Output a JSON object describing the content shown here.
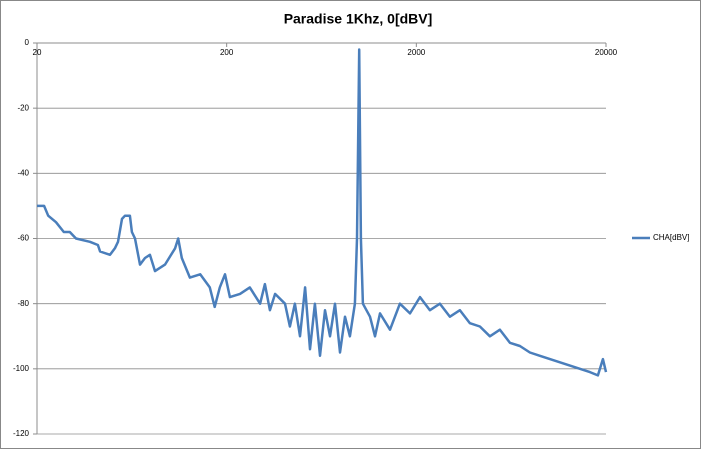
{
  "chart_data": {
    "type": "line",
    "title": "Paradise 1Khz, 0[dBV]",
    "x": [
      20,
      21.8,
      22.9,
      25.2,
      27.7,
      29.8,
      32.1,
      38,
      41.9,
      43,
      48.5,
      51.5,
      53.5,
      56.1,
      58.2,
      61.8,
      63.3,
      65.7,
      69.8,
      74.2,
      78.8,
      83.8,
      94.6,
      107,
      111,
      116,
      128,
      145,
      163,
      173,
      184,
      196,
      208,
      235,
      265,
      300,
      318,
      338,
      360,
      406,
      431,
      458,
      487,
      518,
      550,
      584,
      621,
      660,
      701,
      745,
      792,
      841,
      893,
      949,
      973,
      1000,
      1021,
      1046,
      1139,
      1211,
      1286,
      1452,
      1639,
      1851,
      2090,
      2359,
      2664,
      3007,
      3395,
      3834,
      4328,
      4887,
      5517,
      6229,
      7032,
      7941,
      8966,
      10122,
      11428,
      12903,
      14567,
      16452,
      18134,
      19254,
      20000
    ],
    "series": [
      {
        "name": "CHA[dBV]",
        "color": "#4a7ebb",
        "values": [
          -50,
          -50,
          -53,
          -55,
          -58,
          -58,
          -60,
          -61,
          -62,
          -64,
          -65,
          -63,
          -61,
          -54,
          -53,
          -53,
          -58,
          -60,
          -68,
          -66,
          -65,
          -70,
          -68,
          -63,
          -60,
          -66,
          -72,
          -71,
          -75,
          -81,
          -75,
          -71,
          -78,
          -77,
          -75,
          -80,
          -74,
          -82,
          -77,
          -80,
          -87,
          -80,
          -90,
          -75,
          -94,
          -80,
          -96,
          -82,
          -90,
          -80,
          -95,
          -84,
          -90,
          -80,
          -60,
          -2,
          -60,
          -80,
          -84,
          -90,
          -83,
          -88,
          -80,
          -83,
          -78,
          -82,
          -80,
          -84,
          -82,
          -86,
          -87,
          -90,
          -88,
          -92,
          -93,
          -95,
          -96,
          -97,
          -98,
          -99,
          -100,
          -101,
          -102,
          -97,
          -101
        ]
      }
    ],
    "xlim": [
      20,
      20000
    ],
    "xticks": [
      20,
      200,
      2000,
      20000
    ],
    "xlog": true,
    "ylim": [
      -120,
      0
    ],
    "yticks": [
      0,
      -20,
      -40,
      -60,
      -80,
      -100,
      -120
    ],
    "grid": true
  }
}
